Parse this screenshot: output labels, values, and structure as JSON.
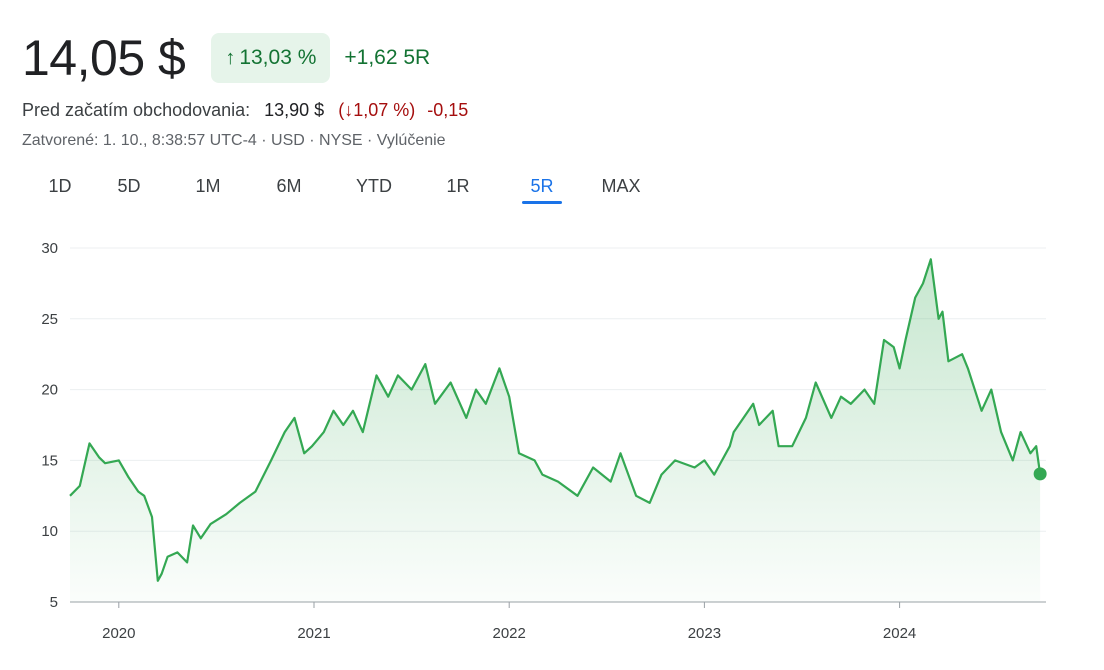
{
  "quote": {
    "price": "14,05 $",
    "change_pct": "13,03 %",
    "change_abs": "+1,62 5R",
    "premarket_label": "Pred začatím obchodovania:",
    "premarket_price": "13,90 $",
    "premarket_pct": "1,07 %",
    "premarket_abs": "-0,15",
    "meta": "Zatvorené: 1. 10., 8:38:57 UTC-4 · USD · NYSE · Vylúčenie"
  },
  "colors": {
    "up": "#137333",
    "down": "#a50e0e",
    "line": "#34a853",
    "accent": "#1a73e8"
  },
  "tabs": [
    {
      "label": "1D"
    },
    {
      "label": "5D"
    },
    {
      "label": "1M"
    },
    {
      "label": "6M"
    },
    {
      "label": "YTD"
    },
    {
      "label": "1R"
    },
    {
      "label": "5R",
      "active": true
    },
    {
      "label": "MAX"
    }
  ],
  "chart_data": {
    "type": "area",
    "ylim": [
      5,
      30
    ],
    "y_ticks": [
      5,
      10,
      15,
      20,
      25,
      30
    ],
    "x_ticks": [
      "2020",
      "2021",
      "2022",
      "2023",
      "2024"
    ],
    "xlim": [
      2019.75,
      2024.75
    ],
    "grid": true,
    "series": [
      {
        "x": [
          2019.75,
          2019.8,
          2019.83,
          2019.85,
          2019.9,
          2019.93,
          2020.0,
          2020.05,
          2020.1,
          2020.13,
          2020.17,
          2020.2,
          2020.22,
          2020.25,
          2020.3,
          2020.35,
          2020.38,
          2020.42,
          2020.47,
          2020.55,
          2020.62,
          2020.7,
          2020.78,
          2020.85,
          2020.9,
          2020.95,
          2020.99,
          2021.02,
          2021.05,
          2021.1,
          2021.15,
          2021.2,
          2021.25,
          2021.32,
          2021.38,
          2021.43,
          2021.5,
          2021.57,
          2021.62,
          2021.7,
          2021.78,
          2021.83,
          2021.88,
          2021.95,
          2022.0,
          2022.05,
          2022.13,
          2022.17,
          2022.25,
          2022.35,
          2022.43,
          2022.52,
          2022.57,
          2022.65,
          2022.72,
          2022.78,
          2022.85,
          2022.95,
          2023.0,
          2023.05,
          2023.13,
          2023.15,
          2023.25,
          2023.28,
          2023.35,
          2023.38,
          2023.45,
          2023.52,
          2023.57,
          2023.65,
          2023.7,
          2023.75,
          2023.82,
          2023.87,
          2023.92,
          2023.97,
          2024.0,
          2024.03,
          2024.08,
          2024.12,
          2024.16,
          2024.2,
          2024.22,
          2024.25,
          2024.32,
          2024.35,
          2024.42,
          2024.47,
          2024.52,
          2024.58,
          2024.62,
          2024.67,
          2024.7,
          2024.72
        ],
        "y": [
          12.5,
          13.2,
          15.0,
          16.2,
          15.2,
          14.8,
          15.0,
          13.8,
          12.8,
          12.5,
          11.0,
          6.5,
          7.0,
          8.2,
          8.5,
          7.8,
          10.4,
          9.5,
          10.5,
          11.2,
          12.0,
          12.8,
          15.0,
          17.0,
          18.0,
          15.5,
          16.0,
          16.5,
          17.0,
          18.5,
          17.5,
          18.5,
          17.0,
          21.0,
          19.5,
          21.0,
          20.0,
          21.8,
          19.0,
          20.5,
          18.0,
          20.0,
          19.0,
          21.5,
          19.5,
          15.5,
          15.0,
          14.0,
          13.5,
          12.5,
          14.5,
          13.5,
          15.5,
          12.5,
          12.0,
          14.0,
          15.0,
          14.5,
          15.0,
          14.0,
          16.0,
          17.0,
          19.0,
          17.5,
          18.5,
          16.0,
          16.0,
          18.0,
          20.5,
          18.0,
          19.5,
          19.0,
          20.0,
          19.0,
          23.5,
          23.0,
          21.5,
          23.5,
          26.5,
          27.5,
          29.2,
          25.0,
          25.5,
          22.0,
          22.5,
          21.5,
          18.5,
          20.0,
          17.0,
          15.0,
          17.0,
          15.5,
          16.0,
          14.05
        ]
      }
    ]
  }
}
